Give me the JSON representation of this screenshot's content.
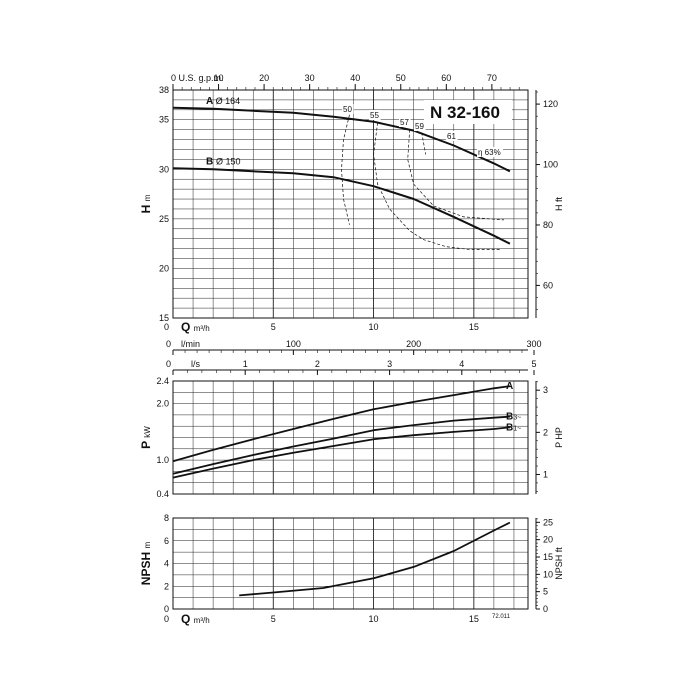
{
  "title": "N 32-160",
  "figure_code": "72.011",
  "chart_data": [
    {
      "type": "line",
      "name": "head",
      "ylabel": "H",
      "ylabel_unit": "m",
      "y2label": "H ft",
      "xlabel": "Q",
      "xlabel_unit": "m³/h",
      "xlim": [
        0,
        17.7
      ],
      "ylim": [
        15,
        38
      ],
      "x_ticks": [
        0,
        5,
        10,
        15
      ],
      "y_ticks": [
        15,
        20,
        25,
        30,
        35,
        38
      ],
      "y2_ticks": [
        60,
        80,
        100,
        120
      ],
      "top_axis_label": "U.S. g.p.m.",
      "top_axis_ticks": [
        0,
        10,
        20,
        30,
        40,
        50,
        60,
        70
      ],
      "top_axis_factor": 4.403,
      "y2_factor": 3.2808,
      "series": [
        {
          "name": "A",
          "label": "Ø 164",
          "x": [
            0,
            2,
            4,
            6,
            8,
            10,
            12,
            14,
            16,
            16.8
          ],
          "y": [
            36.2,
            36.1,
            35.9,
            35.7,
            35.3,
            34.8,
            33.9,
            32.4,
            30.6,
            29.8
          ]
        },
        {
          "name": "B",
          "label": "Ø 150",
          "x": [
            0,
            2,
            4,
            6,
            8,
            10,
            12,
            14,
            16,
            16.8
          ],
          "y": [
            30.1,
            30.0,
            29.8,
            29.6,
            29.2,
            28.3,
            27.0,
            25.2,
            23.3,
            22.5
          ]
        }
      ],
      "efficiency_labels": [
        "50",
        "55",
        "57",
        "59",
        "61",
        "η 63%"
      ],
      "efficiency_curves": [
        {
          "label": "50",
          "x": [
            8.8,
            8.5,
            8.4,
            8.5,
            8.8
          ],
          "y": [
            35.5,
            33.0,
            30.0,
            27.0,
            24.4
          ]
        },
        {
          "label": "55",
          "x": [
            10.2,
            10.0,
            10.2,
            10.8,
            11.8,
            12.5,
            13.6,
            14.8,
            16.3
          ],
          "y": [
            34.7,
            31.5,
            28.5,
            26.0,
            23.8,
            22.9,
            22.2,
            21.9,
            21.9
          ]
        },
        {
          "label": "57",
          "x": [
            11.8,
            11.7,
            12.0,
            13.0,
            14.5,
            16.5
          ],
          "y": [
            34.0,
            31.0,
            28.5,
            26.3,
            25.2,
            24.9
          ]
        },
        {
          "label": "59",
          "x": [
            12.4,
            12.6
          ],
          "y": [
            33.7,
            31.5
          ]
        }
      ]
    },
    {
      "type": "line",
      "name": "power",
      "ylabel": "P",
      "ylabel_unit": "kW",
      "y2label": "P HP",
      "xlim": [
        0,
        17.7
      ],
      "ylim": [
        0.4,
        2.4
      ],
      "y_ticks": [
        0.4,
        1.0,
        2.0,
        2.4
      ],
      "y2_ticks": [
        1,
        2,
        3
      ],
      "y2_factor": 1.341,
      "axis_l_min_label": "l/min",
      "axis_l_min_ticks": [
        0,
        100,
        200,
        300
      ],
      "axis_l_min_factor": 16.667,
      "axis_l_s_label": "l/s",
      "axis_l_s_ticks": [
        0,
        1,
        2,
        3,
        4,
        5
      ],
      "axis_l_s_factor": 0.2778,
      "series": [
        {
          "name": "A",
          "label": "A",
          "x": [
            0,
            2,
            4,
            6,
            8,
            10,
            12,
            14,
            16,
            16.8
          ],
          "y": [
            0.98,
            1.18,
            1.37,
            1.55,
            1.73,
            1.9,
            2.03,
            2.15,
            2.27,
            2.31
          ]
        },
        {
          "name": "B3",
          "label": "B 3~",
          "x": [
            0,
            2,
            4,
            6,
            8,
            10,
            12,
            14,
            16,
            16.8
          ],
          "y": [
            0.76,
            0.93,
            1.09,
            1.24,
            1.38,
            1.53,
            1.62,
            1.7,
            1.75,
            1.77
          ]
        },
        {
          "name": "B1",
          "label": "B 1~",
          "x": [
            0,
            2,
            4,
            6,
            8,
            10,
            12,
            14,
            16,
            16.8
          ],
          "y": [
            0.69,
            0.85,
            1.0,
            1.13,
            1.25,
            1.37,
            1.44,
            1.5,
            1.55,
            1.58
          ]
        }
      ]
    },
    {
      "type": "line",
      "name": "npsh",
      "ylabel": "NPSH",
      "ylabel_unit": "m",
      "y2label": "NPSH ft",
      "xlabel": "Q",
      "xlabel_unit": "m³/h",
      "xlim": [
        0,
        17.7
      ],
      "ylim": [
        0,
        8
      ],
      "x_ticks": [
        0,
        5,
        10,
        15
      ],
      "y_ticks": [
        0,
        2,
        4,
        6,
        8
      ],
      "y2_ticks": [
        0,
        5,
        10,
        15,
        20,
        25
      ],
      "y2_factor": 3.2808,
      "series": [
        {
          "name": "NPSH",
          "x": [
            3.3,
            5,
            7.5,
            10,
            12,
            14,
            16,
            16.8
          ],
          "y": [
            1.2,
            1.45,
            1.85,
            2.7,
            3.7,
            5.1,
            6.9,
            7.6
          ]
        }
      ]
    }
  ]
}
